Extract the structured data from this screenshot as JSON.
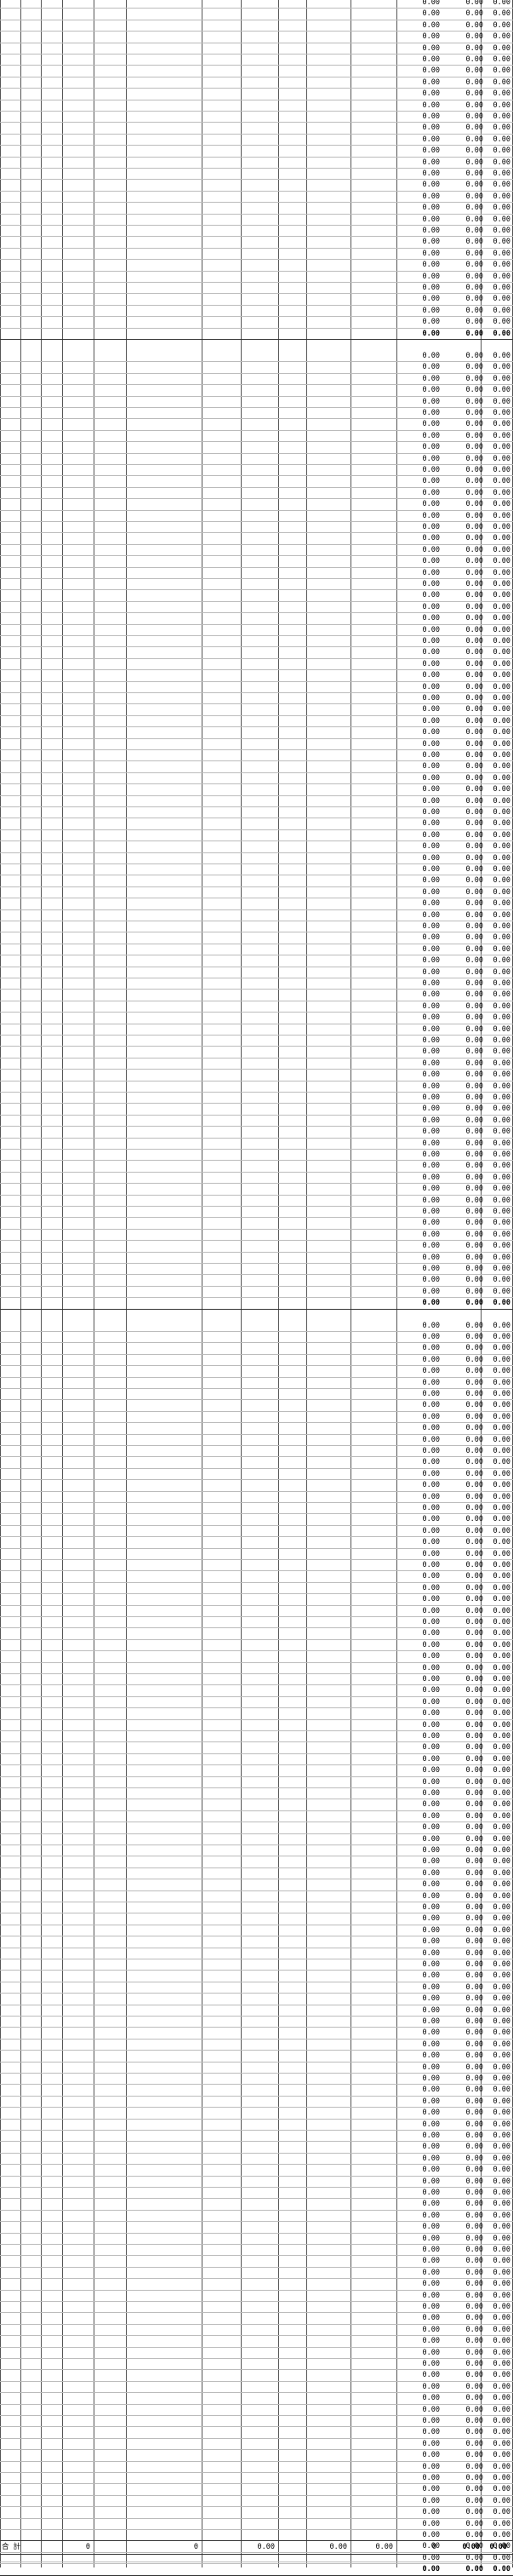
{
  "ledger": {
    "colors": {
      "grid_major": "#555555",
      "grid_minor": "#bbbbbb",
      "text": "#000000"
    },
    "row_value": "0.00",
    "block1": {
      "rows": 29,
      "subtotal": [
        "0.00",
        "0.00",
        "0.00"
      ]
    },
    "block2": {
      "rows": 83,
      "subtotal": [
        "0.00",
        "0.00",
        "0.00"
      ]
    },
    "block3": {
      "rows": 109,
      "subtotal": [
        "0.00",
        "0.00",
        "0.00"
      ]
    },
    "grand_total": {
      "label": "合 計",
      "values": [
        "0",
        "0",
        "0.00",
        "0.00",
        "0.00",
        "0",
        "0.00",
        "0.00"
      ]
    }
  }
}
